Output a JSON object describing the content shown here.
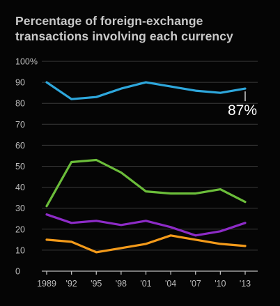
{
  "chart_data": {
    "type": "line",
    "title_lines": [
      "Percentage of foreign-exchange",
      "transactions involving each currency"
    ],
    "x": [
      "1989",
      "'92",
      "'95",
      "'98",
      "'01",
      "'04",
      "'07",
      "'10",
      "'13"
    ],
    "y_ticks": [
      "100%",
      "90",
      "80",
      "70",
      "60",
      "50",
      "40",
      "30",
      "20",
      "10",
      "0"
    ],
    "ylim": [
      0,
      100
    ],
    "grid": true,
    "legend": "none",
    "series": [
      {
        "color": "#2ea7dc",
        "values": [
          90,
          82,
          83,
          87,
          90,
          88,
          86,
          85,
          87
        ]
      },
      {
        "color": "#6bbd3a",
        "values": [
          31,
          52,
          53,
          47,
          38,
          37,
          37,
          39,
          33
        ]
      },
      {
        "color": "#8d2bc7",
        "values": [
          27,
          23,
          24,
          22,
          24,
          21,
          17,
          19,
          23
        ]
      },
      {
        "color": "#f39a1a",
        "values": [
          15,
          14,
          9,
          11,
          13,
          17,
          15,
          13,
          12
        ]
      }
    ],
    "annotation": {
      "text": "87%",
      "series_index": 0,
      "point_index": 8
    }
  }
}
